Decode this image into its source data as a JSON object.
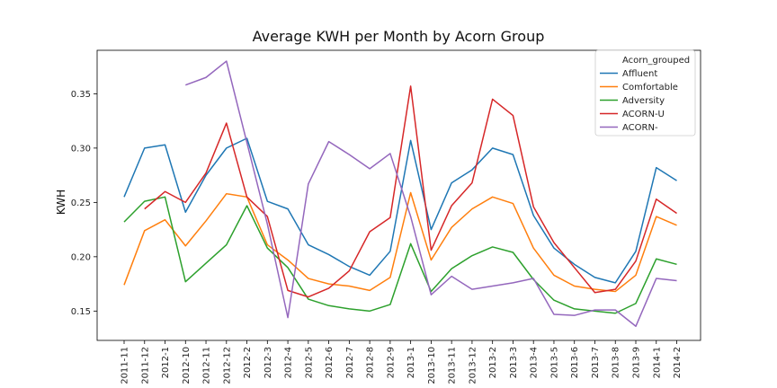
{
  "chart_data": {
    "type": "line",
    "title": "Average KWH per Month by Acorn Group",
    "xlabel": "",
    "ylabel": "KWH",
    "ylim": [
      0.123,
      0.39
    ],
    "yticks": [
      0.15,
      0.2,
      0.25,
      0.3,
      0.35
    ],
    "ytick_labels": [
      "0.15",
      "0.20",
      "0.25",
      "0.30",
      "0.35"
    ],
    "grid": false,
    "legend_position": "top-right",
    "legend_title": "Acorn_grouped",
    "categories": [
      "2011-11",
      "2011-12",
      "2012-1",
      "2012-10",
      "2012-11",
      "2012-12",
      "2012-2",
      "2012-3",
      "2012-4",
      "2012-5",
      "2012-6",
      "2012-7",
      "2012-8",
      "2012-9",
      "2013-1",
      "2013-10",
      "2013-11",
      "2013-12",
      "2013-2",
      "2013-3",
      "2013-4",
      "2013-5",
      "2013-6",
      "2013-7",
      "2013-8",
      "2013-9",
      "2014-1",
      "2014-2"
    ],
    "series": [
      {
        "name": "Affluent",
        "color": "#1f77b4",
        "values": [
          0.255,
          0.3,
          0.303,
          0.241,
          0.275,
          0.3,
          0.309,
          0.251,
          0.244,
          0.211,
          0.202,
          0.191,
          0.183,
          0.205,
          0.307,
          0.225,
          0.268,
          0.28,
          0.3,
          0.294,
          0.238,
          0.208,
          0.193,
          0.181,
          0.176,
          0.205,
          0.282,
          0.27
        ]
      },
      {
        "name": "Comfortable",
        "color": "#ff7f0e",
        "values": [
          0.174,
          0.224,
          0.234,
          0.21,
          0.233,
          0.258,
          0.255,
          0.211,
          0.197,
          0.18,
          0.175,
          0.173,
          0.169,
          0.181,
          0.259,
          0.197,
          0.227,
          0.244,
          0.255,
          0.249,
          0.208,
          0.183,
          0.173,
          0.17,
          0.168,
          0.183,
          0.237,
          0.229
        ]
      },
      {
        "name": "Adversity",
        "color": "#2ca02c",
        "values": [
          0.232,
          0.251,
          0.255,
          0.177,
          0.194,
          0.211,
          0.247,
          0.208,
          0.19,
          0.161,
          0.155,
          0.152,
          0.15,
          0.156,
          0.212,
          0.168,
          0.189,
          0.201,
          0.209,
          0.204,
          0.179,
          0.16,
          0.152,
          0.15,
          0.148,
          0.157,
          0.198,
          0.193
        ]
      },
      {
        "name": "ACORN-U",
        "color": "#d62728",
        "values": [
          null,
          0.244,
          0.26,
          0.25,
          0.277,
          0.323,
          0.255,
          0.237,
          0.169,
          0.163,
          0.171,
          0.187,
          0.223,
          0.236,
          0.357,
          0.206,
          0.247,
          0.268,
          0.345,
          0.33,
          0.246,
          0.213,
          0.19,
          0.167,
          0.17,
          0.196,
          0.253,
          0.24
        ]
      },
      {
        "name": "ACORN-",
        "color": "#9467bd",
        "values": [
          null,
          null,
          null,
          0.358,
          0.365,
          0.38,
          0.305,
          0.23,
          0.144,
          0.267,
          0.306,
          0.294,
          0.281,
          0.295,
          0.237,
          0.165,
          0.182,
          0.17,
          0.173,
          0.176,
          0.18,
          0.147,
          0.146,
          0.151,
          0.151,
          0.136,
          0.18,
          0.178
        ]
      }
    ]
  }
}
